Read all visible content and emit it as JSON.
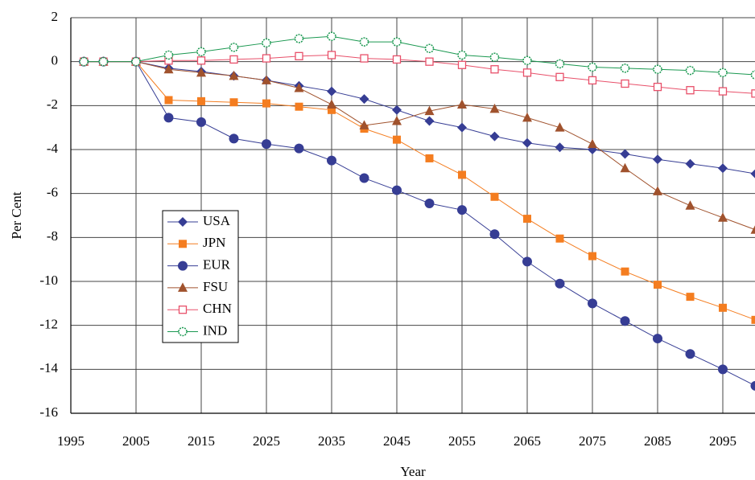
{
  "chart_data": {
    "type": "line",
    "x_label": "Year",
    "y_label": "Per Cent",
    "x": [
      1997,
      2000,
      2005,
      2010,
      2015,
      2020,
      2025,
      2030,
      2035,
      2040,
      2045,
      2050,
      2055,
      2060,
      2065,
      2070,
      2075,
      2080,
      2085,
      2090,
      2095,
      2100
    ],
    "series": [
      {
        "name": "USA",
        "color": "#363d94",
        "marker": "diamond",
        "values": [
          0,
          0,
          0,
          -0.3,
          -0.45,
          -0.65,
          -0.85,
          -1.1,
          -1.35,
          -1.7,
          -2.2,
          -2.7,
          -3.0,
          -3.4,
          -3.7,
          -3.9,
          -4.0,
          -4.2,
          -4.45,
          -4.65,
          -4.85,
          -5.1
        ]
      },
      {
        "name": "JPN",
        "color": "#f47d20",
        "marker": "square",
        "values": [
          0,
          0,
          0,
          -1.75,
          -1.8,
          -1.85,
          -1.9,
          -2.05,
          -2.2,
          -3.05,
          -3.55,
          -4.4,
          -5.15,
          -6.15,
          -7.15,
          -8.05,
          -8.85,
          -9.55,
          -10.15,
          -10.7,
          -11.2,
          -11.75
        ]
      },
      {
        "name": "EUR",
        "color": "#363d94",
        "marker": "circle",
        "values": [
          0,
          0,
          0,
          -2.55,
          -2.75,
          -3.5,
          -3.75,
          -3.95,
          -4.5,
          -5.3,
          -5.85,
          -6.45,
          -6.75,
          -7.85,
          -9.1,
          -10.1,
          -11.0,
          -11.8,
          -12.6,
          -13.3,
          -14.0,
          -14.75
        ]
      },
      {
        "name": "FSU",
        "color": "#a0522d",
        "marker": "triangle",
        "values": [
          0,
          0,
          0,
          -0.35,
          -0.5,
          -0.65,
          -0.85,
          -1.2,
          -1.95,
          -2.9,
          -2.7,
          -2.25,
          -1.95,
          -2.15,
          -2.55,
          -3.0,
          -3.75,
          -4.85,
          -5.9,
          -6.55,
          -7.1,
          -7.65
        ]
      },
      {
        "name": "CHN",
        "color": "#e8506a",
        "marker": "open-square",
        "values": [
          0,
          0,
          0,
          0.05,
          0.05,
          0.1,
          0.15,
          0.25,
          0.3,
          0.15,
          0.1,
          0,
          -0.15,
          -0.35,
          -0.5,
          -0.7,
          -0.85,
          -1.0,
          -1.15,
          -1.3,
          -1.35,
          -1.45
        ]
      },
      {
        "name": "IND",
        "color": "#1a9850",
        "marker": "open-circle",
        "values": [
          0,
          0,
          0,
          0.3,
          0.45,
          0.65,
          0.85,
          1.05,
          1.15,
          0.9,
          0.9,
          0.6,
          0.3,
          0.2,
          0.05,
          -0.1,
          -0.25,
          -0.3,
          -0.35,
          -0.4,
          -0.5,
          -0.6
        ]
      }
    ],
    "xlim": [
      1995,
      2100
    ],
    "xticks": [
      1995,
      2005,
      2015,
      2025,
      2035,
      2045,
      2055,
      2065,
      2075,
      2085,
      2095
    ],
    "ylim": [
      -16,
      2
    ],
    "yticks": [
      -16,
      -14,
      -12,
      -10,
      -8,
      -6,
      -4,
      -2,
      0,
      2
    ],
    "grid": true,
    "legend": "center-left"
  }
}
